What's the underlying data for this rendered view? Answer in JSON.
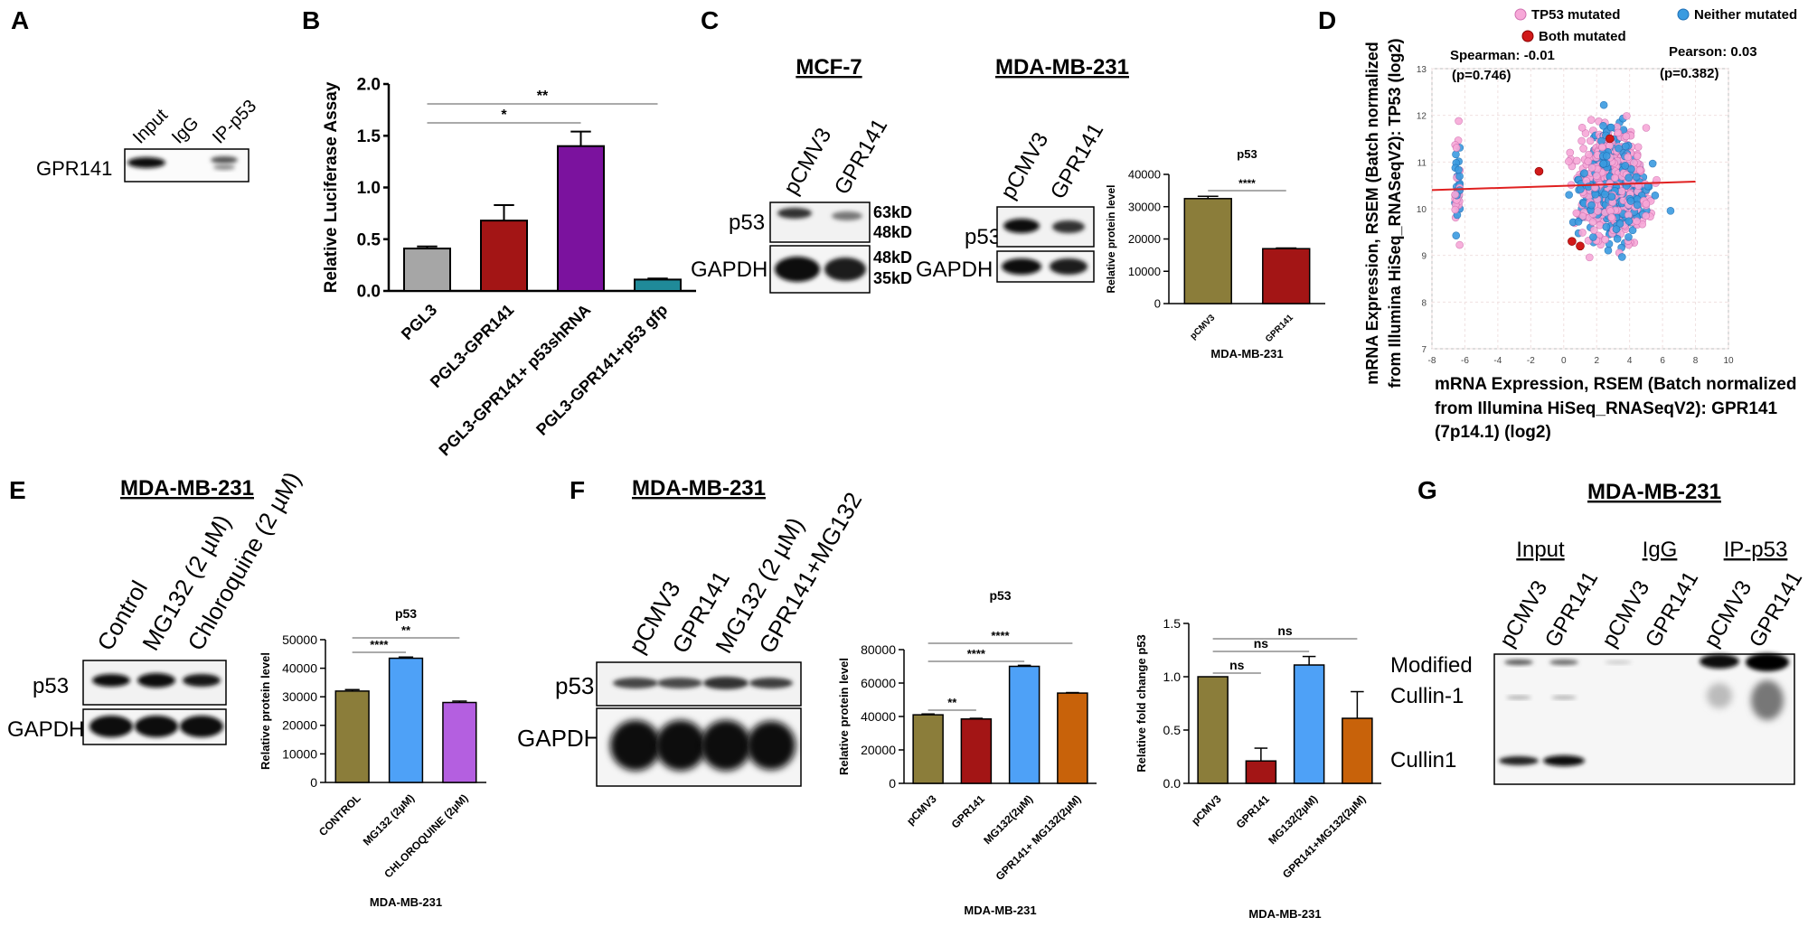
{
  "panel_letters": {
    "A": "A",
    "B": "B",
    "C": "C",
    "D": "D",
    "E": "E",
    "F": "F",
    "G": "G"
  },
  "blot_A": {
    "lanes": [
      "Input",
      "IgG",
      "IP-p53"
    ],
    "row_label": "GPR141"
  },
  "blot_C": {
    "mcf7": {
      "title": "MCF-7",
      "lanes": [
        "pCMV3",
        "GPR141"
      ],
      "rows": [
        "p53",
        "GAPDH"
      ],
      "markers": [
        "63kD",
        "48kD",
        "48kD",
        "35kD"
      ]
    },
    "mdamb231": {
      "title": "MDA-MB-231",
      "lanes": [
        "pCMV3",
        "GPR141"
      ],
      "rows": [
        "p53",
        "GAPDH"
      ]
    }
  },
  "blot_E": {
    "title": "MDA-MB-231",
    "lanes": [
      "Control",
      "MG132 (2 µM)",
      "Chloroquine (2 µM)"
    ],
    "rows": [
      "p53",
      "GAPDH"
    ]
  },
  "blot_F": {
    "title": "MDA-MB-231",
    "lanes": [
      "pCMV3",
      "GPR141",
      "MG132 (2 µM)",
      "GPR141+MG132"
    ],
    "rows": [
      "p53",
      "GAPDH"
    ]
  },
  "blot_G": {
    "title": "MDA-MB-231",
    "groups": [
      "Input",
      "IgG",
      "IP-p53"
    ],
    "lanes": [
      "pCMV3",
      "GPR141",
      "pCMV3",
      "GPR141",
      "pCMV3",
      "GPR141"
    ],
    "labels": [
      "Modified",
      "Cullin-1",
      "Cullin1"
    ]
  },
  "chart_data": [
    {
      "id": "B",
      "type": "bar",
      "categories": [
        "PGL3",
        "PGL3-GPR141",
        "PGL3-GPR141+ p53shRNA",
        "PGL3-GPR141+p53 gfp"
      ],
      "values": [
        0.41,
        0.68,
        1.4,
        0.11
      ],
      "errors": [
        0.02,
        0.15,
        0.14,
        0.01
      ],
      "colors": [
        "#a6a6a6",
        "#a31515",
        "#7b129e",
        "#1f8a99"
      ],
      "ylabel": "Relative Luciferase Assay",
      "ylim": [
        0,
        2.0
      ],
      "yticks": [
        0,
        0.5,
        1.0,
        1.5,
        2.0
      ],
      "ytick_labels": [
        "0.0",
        "0.5",
        "1.0",
        "1.5",
        "2.0"
      ],
      "significance": [
        {
          "from": 0,
          "to": 2,
          "label": "*"
        },
        {
          "from": 0,
          "to": 3,
          "label": "**"
        }
      ]
    },
    {
      "id": "C",
      "type": "bar",
      "title": "p53",
      "categories": [
        "pCMV3",
        "GPR141"
      ],
      "values": [
        32500,
        17000
      ],
      "errors": [
        700,
        200
      ],
      "colors": [
        "#8b7d3a",
        "#a31515"
      ],
      "ylabel": "Relative protein level",
      "xlabel": "MDA-MB-231",
      "ylim": [
        0,
        40000
      ],
      "yticks": [
        0,
        10000,
        20000,
        30000,
        40000
      ],
      "ytick_labels": [
        "0",
        "10000",
        "20000",
        "30000",
        "40000"
      ],
      "significance": [
        {
          "from": 0,
          "to": 1,
          "label": "****"
        }
      ]
    },
    {
      "id": "D",
      "type": "scatter",
      "title": "",
      "xlabel": "mRNA Expression, RSEM (Batch normalized from Illumina HiSeq_RNASeqV2): GPR141 (7p14.1) (log2)",
      "ylabel": "mRNA Expression, RSEM (Batch normalized from Illumina HiSeq_RNASeqV2): TP53 (log2)",
      "xlim": [
        -8,
        10
      ],
      "ylim": [
        7,
        13
      ],
      "xticks": [
        -8,
        -6,
        -4,
        -2,
        0,
        2,
        4,
        6,
        8,
        10
      ],
      "yticks": [
        7,
        8,
        9,
        10,
        11,
        12,
        13
      ],
      "legend": [
        "TP53 mutated",
        "Neither mutated",
        "Both mutated"
      ],
      "legend_colors": [
        "#f7a8d8",
        "#3a9be0",
        "#d11a1a"
      ],
      "annotations": [
        "Spearman: -0.01",
        "(p=0.746)",
        "Pearson: 0.03",
        "(p=0.382)"
      ],
      "trend": [
        [
          -8,
          10.4
        ],
        [
          8,
          10.58
        ]
      ],
      "both_mutated_points": [
        [
          -1.5,
          10.8
        ],
        [
          0.5,
          9.3
        ],
        [
          1.0,
          9.2
        ],
        [
          2.8,
          11.5
        ]
      ]
    },
    {
      "id": "E",
      "type": "bar",
      "title": "p53",
      "categories": [
        "CONTROL",
        "MG132 (2µM)",
        "CHLOROQUINE (2µM)"
      ],
      "values": [
        32000,
        43500,
        28000
      ],
      "errors": [
        500,
        400,
        500
      ],
      "colors": [
        "#8b7d3a",
        "#4ea1f7",
        "#b45fe0"
      ],
      "ylabel": "Relative protein level",
      "xlabel": "MDA-MB-231",
      "ylim": [
        0,
        50000
      ],
      "yticks": [
        0,
        10000,
        20000,
        30000,
        40000,
        50000
      ],
      "ytick_labels": [
        "0",
        "10000",
        "20000",
        "30000",
        "40000",
        "50000"
      ],
      "significance": [
        {
          "from": 0,
          "to": 1,
          "label": "****"
        },
        {
          "from": 0,
          "to": 2,
          "label": "**"
        }
      ]
    },
    {
      "id": "F1",
      "type": "bar",
      "title": "p53",
      "categories": [
        "pCMV3",
        "GPR141",
        "MG132(2µM)",
        "GPR141+ MG132(2µM)"
      ],
      "values": [
        41000,
        38500,
        70000,
        54000
      ],
      "errors": [
        500,
        400,
        600,
        300
      ],
      "colors": [
        "#8b7d3a",
        "#a31515",
        "#4ea1f7",
        "#c8620a"
      ],
      "ylabel": "Relative protein level",
      "xlabel": "MDA-MB-231",
      "ylim": [
        0,
        80000
      ],
      "yticks": [
        0,
        20000,
        40000,
        60000,
        80000
      ],
      "ytick_labels": [
        "0",
        "20000",
        "40000",
        "60000",
        "80000"
      ],
      "significance": [
        {
          "from": 0,
          "to": 1,
          "label": "**"
        },
        {
          "from": 0,
          "to": 2,
          "label": "****"
        },
        {
          "from": 0,
          "to": 3,
          "label": "****"
        }
      ]
    },
    {
      "id": "F2",
      "type": "bar",
      "categories": [
        "pCMV3",
        "GPR141",
        "MG132(2µM)",
        "GPR141+MG132(2µM)"
      ],
      "values": [
        1.0,
        0.21,
        1.11,
        0.61
      ],
      "errors": [
        0.0,
        0.12,
        0.08,
        0.25
      ],
      "colors": [
        "#8b7d3a",
        "#a31515",
        "#4ea1f7",
        "#c8620a"
      ],
      "ylabel": "Relative fold change p53",
      "xlabel": "MDA-MB-231",
      "ylim": [
        0,
        1.5
      ],
      "yticks": [
        0,
        0.5,
        1.0,
        1.5
      ],
      "ytick_labels": [
        "0.0",
        "0.5",
        "1.0",
        "1.5"
      ],
      "significance": [
        {
          "from": 0,
          "to": 1,
          "label": "ns"
        },
        {
          "from": 0,
          "to": 2,
          "label": "ns"
        },
        {
          "from": 0,
          "to": 3,
          "label": "ns"
        }
      ]
    }
  ]
}
